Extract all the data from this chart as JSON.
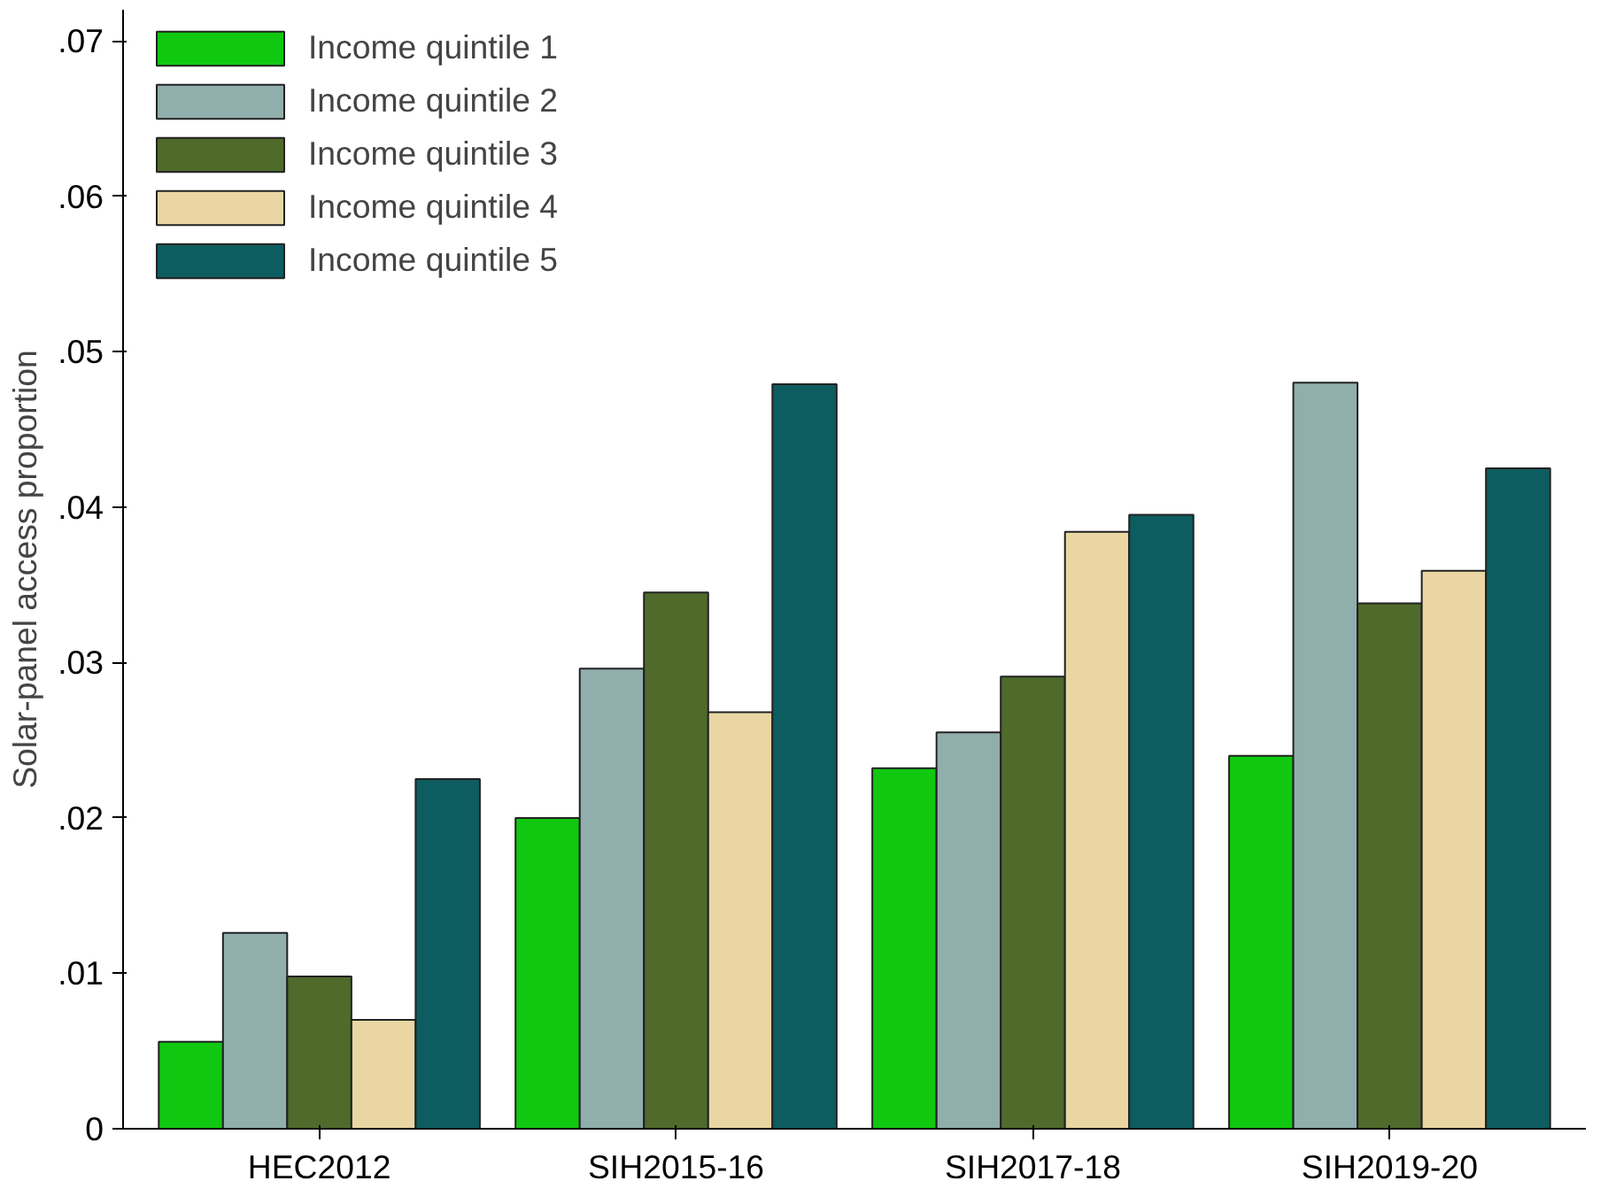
{
  "chart_data": {
    "type": "bar",
    "ylabel": "Solar-panel access proportion",
    "categories": [
      "HEC2012",
      "SIH2015-16",
      "SIH2017-18",
      "SIH2019-20"
    ],
    "series": [
      {
        "name": "Income quintile 1",
        "color": "#10c810",
        "values": [
          0.0056,
          0.02,
          0.0232,
          0.024
        ]
      },
      {
        "name": "Income quintile 2",
        "color": "#90aeac",
        "values": [
          0.0126,
          0.0296,
          0.0255,
          0.048
        ]
      },
      {
        "name": "Income quintile 3",
        "color": "#4f6a2b",
        "values": [
          0.0098,
          0.0345,
          0.0291,
          0.0338
        ]
      },
      {
        "name": "Income quintile 4",
        "color": "#e9d6a3",
        "values": [
          0.007,
          0.0268,
          0.0384,
          0.0359
        ]
      },
      {
        "name": "Income quintile 5",
        "color": "#0d5c5f",
        "values": [
          0.0225,
          0.0479,
          0.0395,
          0.0425
        ]
      }
    ],
    "ylim": [
      0,
      0.072
    ],
    "yticks": [
      {
        "value": 0,
        "label": "0"
      },
      {
        "value": 0.01,
        "label": ".01"
      },
      {
        "value": 0.02,
        "label": ".02"
      },
      {
        "value": 0.03,
        "label": ".03"
      },
      {
        "value": 0.04,
        "label": ".04"
      },
      {
        "value": 0.05,
        "label": ".05"
      },
      {
        "value": 0.06,
        "label": ".06"
      },
      {
        "value": 0.07,
        "label": ".07"
      }
    ],
    "grid": false,
    "legend": "top left"
  }
}
